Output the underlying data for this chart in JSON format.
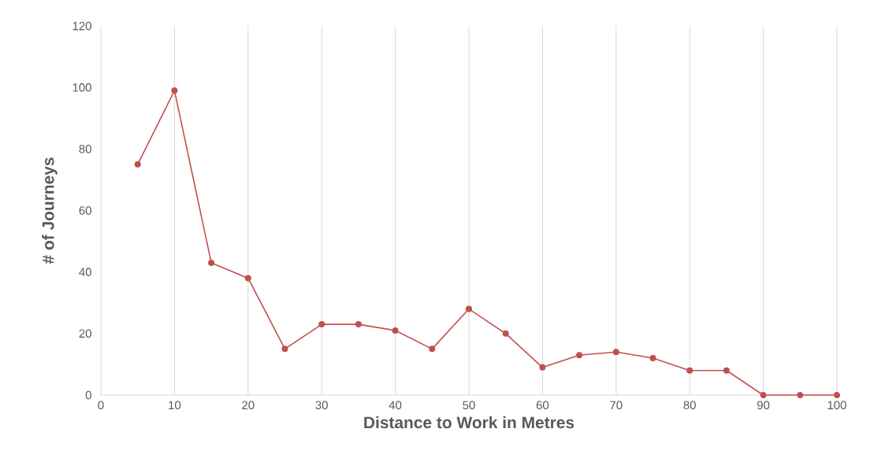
{
  "chart_data": {
    "type": "line",
    "xlabel": "Distance to Work in Metres",
    "ylabel": "# of Journeys",
    "x": [
      5,
      10,
      15,
      20,
      25,
      30,
      35,
      40,
      45,
      50,
      55,
      60,
      65,
      70,
      75,
      80,
      85,
      90,
      95,
      100
    ],
    "series": [
      {
        "color": "#c0504d",
        "values": [
          75,
          99,
          43,
          38,
          15,
          23,
          23,
          21,
          15,
          28,
          20,
          9,
          13,
          14,
          12,
          8,
          8,
          0,
          0,
          0
        ]
      }
    ],
    "xlim": [
      0,
      100
    ],
    "xticks": [
      0,
      10,
      20,
      30,
      40,
      50,
      60,
      70,
      80,
      90,
      100
    ],
    "ylim": [
      0,
      120
    ],
    "yticks": [
      0,
      20,
      40,
      60,
      80,
      100,
      120
    ],
    "grid": "x",
    "marker": "circle",
    "line_style": "solid"
  }
}
